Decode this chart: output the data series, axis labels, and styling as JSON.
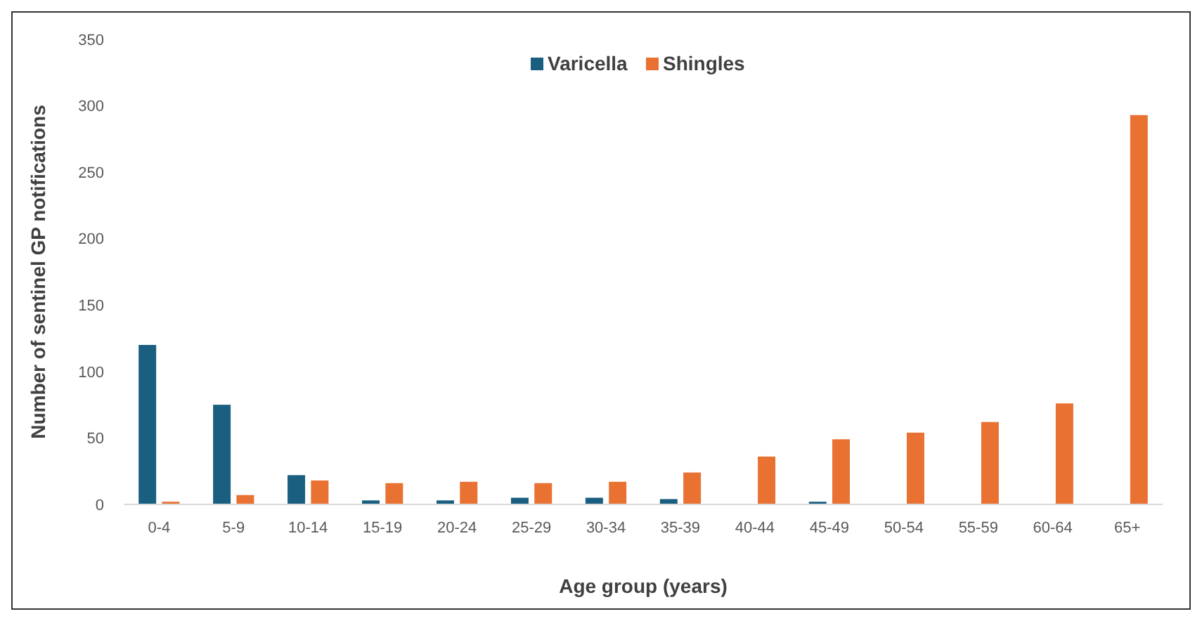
{
  "chart_data": {
    "type": "bar",
    "xlabel": "Age group (years)",
    "ylabel": "Number of sentinel GP notifications",
    "categories": [
      "0-4",
      "5-9",
      "10-14",
      "15-19",
      "20-24",
      "25-29",
      "30-34",
      "35-39",
      "40-44",
      "45-49",
      "50-54",
      "55-59",
      "60-64",
      "65+"
    ],
    "series": [
      {
        "name": "Varicella",
        "color": "#1a5e80",
        "values": [
          120,
          75,
          22,
          3,
          3,
          5,
          5,
          4,
          null,
          2,
          null,
          null,
          null,
          null
        ]
      },
      {
        "name": "Shingles",
        "color": "#e97132",
        "values": [
          2,
          7,
          18,
          16,
          17,
          16,
          17,
          24,
          36,
          49,
          54,
          62,
          76,
          293
        ]
      }
    ],
    "ylim": [
      0,
      350
    ],
    "yticks": [
      0,
      50,
      100,
      150,
      200,
      250,
      300,
      350
    ],
    "grid": false,
    "legend": "top"
  }
}
